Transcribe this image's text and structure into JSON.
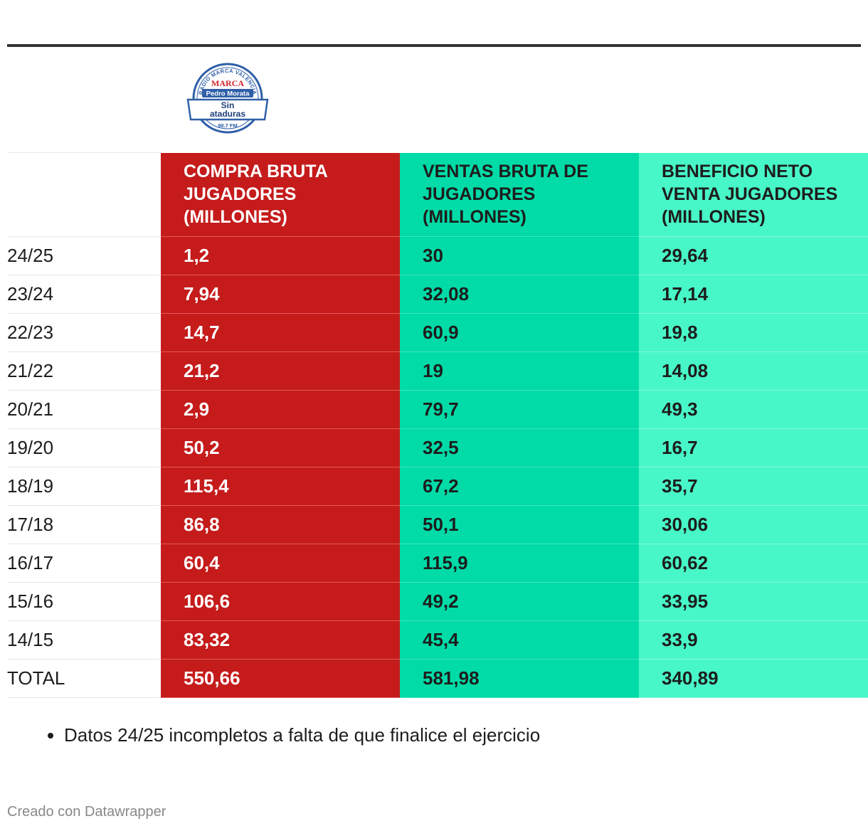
{
  "logo": {
    "ring_text": "RADIO MARCA VALENCIA",
    "brand": "MARCA",
    "host": "Pedro Morata",
    "show_line1": "Sin",
    "show_line2": "ataduras",
    "frequency": "98.7 FM"
  },
  "chart_data": {
    "type": "table",
    "columns": [
      "",
      "COMPRA BRUTA JUGADORES (MILLONES)",
      "VENTAS BRUTA DE JUGADORES (MILLONES)",
      "BENEFICIO NETO VENTA JUGADORES (MILLONES)"
    ],
    "rows": [
      [
        "24/25",
        "1,2",
        "30",
        "29,64"
      ],
      [
        "23/24",
        "7,94",
        "32,08",
        "17,14"
      ],
      [
        "22/23",
        "14,7",
        "60,9",
        "19,8"
      ],
      [
        "21/22",
        "21,2",
        "19",
        "14,08"
      ],
      [
        "20/21",
        "2,9",
        "79,7",
        "49,3"
      ],
      [
        "19/20",
        "50,2",
        "32,5",
        "16,7"
      ],
      [
        "18/19",
        "115,4",
        "67,2",
        "35,7"
      ],
      [
        "17/18",
        "86,8",
        "50,1",
        "30,06"
      ],
      [
        "16/17",
        "60,4",
        "115,9",
        "60,62"
      ],
      [
        "15/16",
        "106,6",
        "49,2",
        "33,95"
      ],
      [
        "14/15",
        "83,32",
        "45,4",
        "33,9"
      ],
      [
        "TOTAL",
        "550,66",
        "581,98",
        "340,89"
      ]
    ],
    "column_colors": [
      "",
      "#c51b1b",
      "#00dba7",
      "#48f7c7"
    ]
  },
  "notes": [
    "Datos 24/25 incompletos a falta de que finalice el ejercicio"
  ],
  "credit": "Creado con Datawrapper"
}
